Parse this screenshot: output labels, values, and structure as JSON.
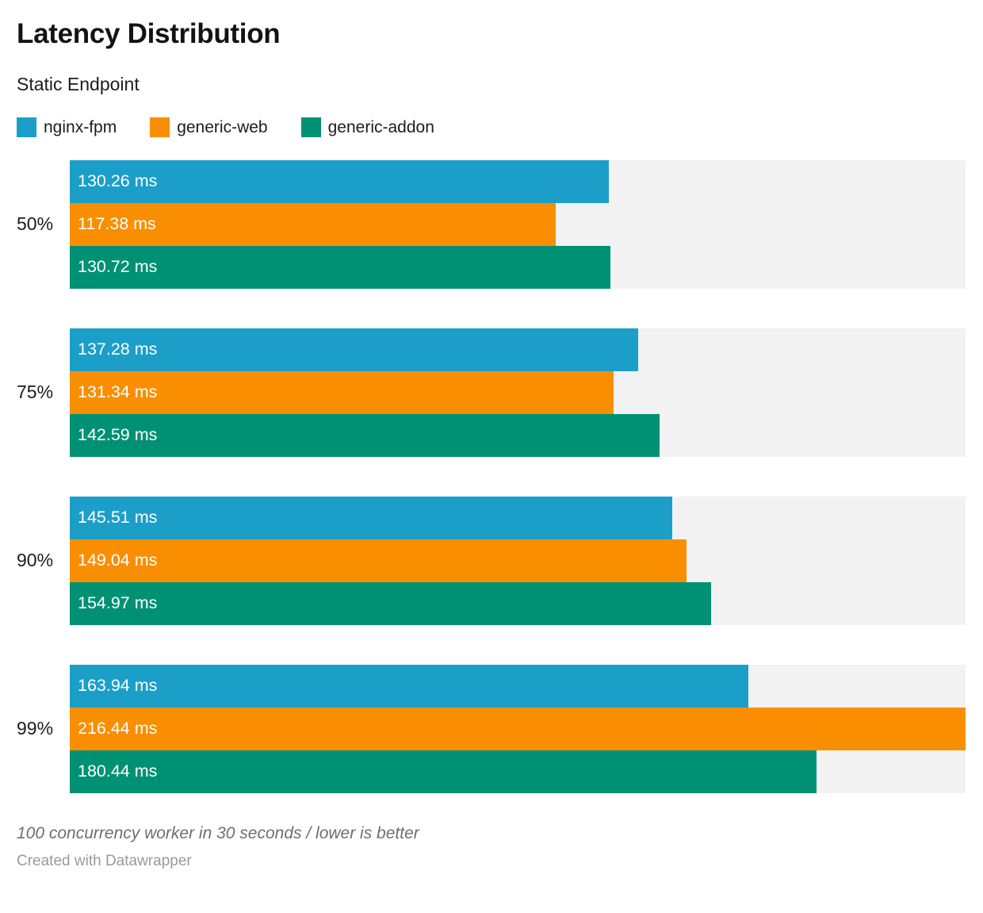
{
  "header": {
    "title": "Latency Distribution",
    "subtitle": "Static Endpoint"
  },
  "legend": [
    {
      "label": "nginx-fpm",
      "color": "#1b9fc9"
    },
    {
      "label": "generic-web",
      "color": "#f98f00"
    },
    {
      "label": "generic-addon",
      "color": "#009175"
    }
  ],
  "chart_data": {
    "type": "bar",
    "orientation": "horizontal",
    "title": "Latency Distribution",
    "subtitle": "Static Endpoint",
    "categories": [
      "50%",
      "75%",
      "90%",
      "99%"
    ],
    "series": [
      {
        "name": "nginx-fpm",
        "color": "#1b9fc9",
        "values": [
          130.26,
          137.28,
          145.51,
          163.94
        ],
        "labels": [
          "130.26 ms",
          "137.28 ms",
          "145.51 ms",
          "163.94 ms"
        ]
      },
      {
        "name": "generic-web",
        "color": "#f98f00",
        "values": [
          117.38,
          131.34,
          149.04,
          216.44
        ],
        "labels": [
          "117.38 ms",
          "131.34 ms",
          "149.04 ms",
          "216.44 ms"
        ]
      },
      {
        "name": "generic-addon",
        "color": "#009175",
        "values": [
          130.72,
          142.59,
          154.97,
          180.44
        ],
        "labels": [
          "130.72 ms",
          "142.59 ms",
          "154.97 ms",
          "180.44 ms"
        ]
      }
    ],
    "value_suffix": " ms",
    "xlim": [
      0,
      216.44
    ],
    "grid": false,
    "legend_position": "top",
    "track_color": "#f2f2f2",
    "value_label_color": "#ffffff"
  },
  "footer": {
    "note": "100 concurrency worker in 30 seconds / lower is better",
    "credit": "Created with Datawrapper"
  }
}
